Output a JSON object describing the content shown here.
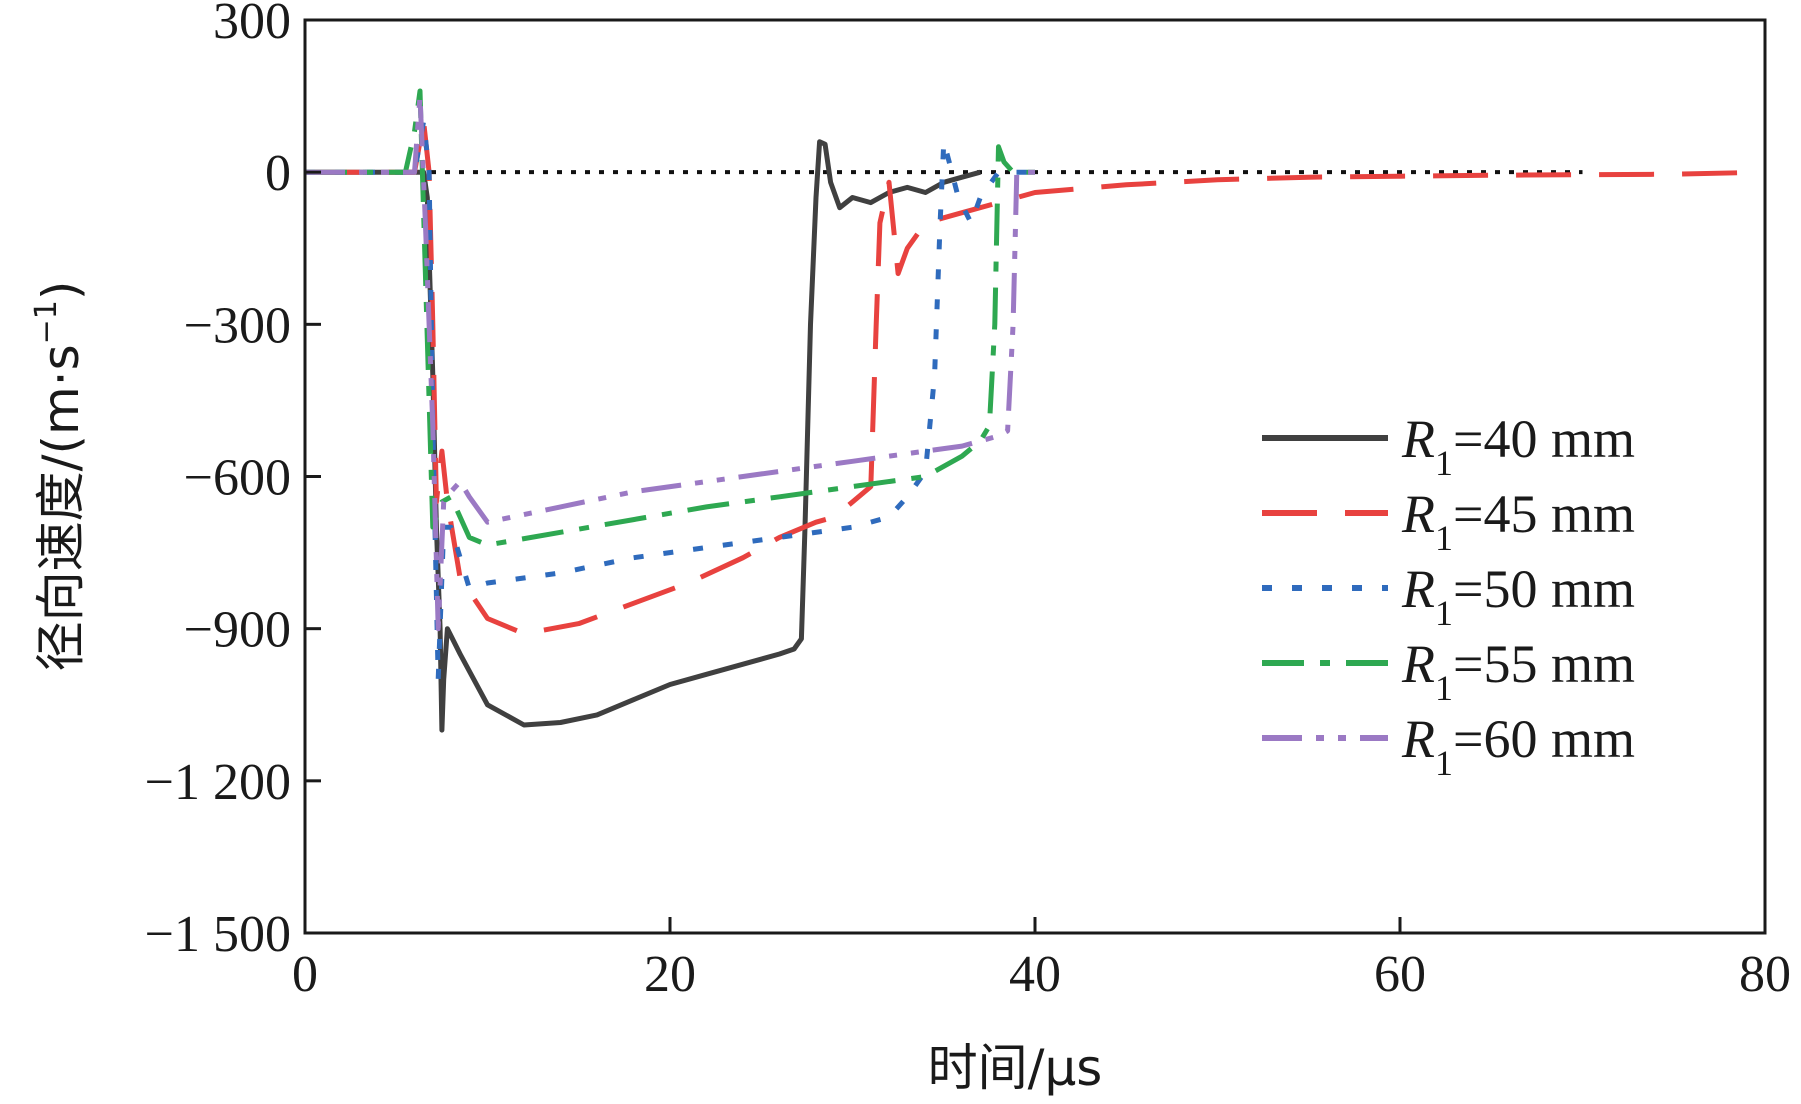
{
  "chart_data": {
    "type": "line",
    "title": "",
    "xlabel": "时间/μs",
    "ylabel": "径向速度/(m·s⁻¹)",
    "ylabel_parts": {
      "prefix": "径向速度/(m·s",
      "sup": "−1",
      "suffix": ")"
    },
    "xlim": [
      0,
      80
    ],
    "ylim": [
      -1500,
      300
    ],
    "xticks": [
      0,
      20,
      40,
      60,
      80
    ],
    "xtick_labels": [
      "0",
      "20",
      "40",
      "60",
      "80"
    ],
    "yticks": [
      300,
      0,
      -300,
      -600,
      -900,
      -1200,
      -1500
    ],
    "ytick_labels": [
      "300",
      "0",
      "−300",
      "−600",
      "−900",
      "−1 200",
      "−1 500"
    ],
    "grid": false,
    "legend_position": "center-right",
    "reference_line": {
      "y": 0,
      "x_range": [
        0,
        70
      ],
      "style": "dotted",
      "color": "#111111"
    },
    "series": [
      {
        "name": "R1=40 mm",
        "legend": {
          "symbol": "R",
          "subscript": "1",
          "text": "=40 mm"
        },
        "color": "#404040",
        "style": "solid",
        "points": [
          [
            0,
            0
          ],
          [
            6.5,
            0
          ],
          [
            6.7,
            -50
          ],
          [
            7.0,
            -400
          ],
          [
            7.2,
            -700
          ],
          [
            7.4,
            -900
          ],
          [
            7.5,
            -1100
          ],
          [
            7.6,
            -1000
          ],
          [
            7.8,
            -900
          ],
          [
            8.5,
            -950
          ],
          [
            10,
            -1050
          ],
          [
            12,
            -1090
          ],
          [
            14,
            -1085
          ],
          [
            16,
            -1070
          ],
          [
            18,
            -1040
          ],
          [
            20,
            -1010
          ],
          [
            22,
            -990
          ],
          [
            24,
            -970
          ],
          [
            26,
            -950
          ],
          [
            26.8,
            -940
          ],
          [
            27.2,
            -920
          ],
          [
            27.4,
            -700
          ],
          [
            27.7,
            -300
          ],
          [
            28.0,
            -50
          ],
          [
            28.2,
            60
          ],
          [
            28.5,
            55
          ],
          [
            28.8,
            -20
          ],
          [
            29.3,
            -70
          ],
          [
            30,
            -50
          ],
          [
            31,
            -60
          ],
          [
            32,
            -40
          ],
          [
            33,
            -30
          ],
          [
            34,
            -40
          ],
          [
            35,
            -20
          ],
          [
            36,
            -10
          ],
          [
            37,
            0
          ]
        ]
      },
      {
        "name": "R1=45 mm",
        "legend": {
          "symbol": "R",
          "subscript": "1",
          "text": "=45 mm"
        },
        "color": "#e8423f",
        "style": "dashed",
        "points": [
          [
            0,
            0
          ],
          [
            6.0,
            0
          ],
          [
            6.5,
            100
          ],
          [
            6.8,
            0
          ],
          [
            7.0,
            -300
          ],
          [
            7.2,
            -650
          ],
          [
            7.5,
            -550
          ],
          [
            7.8,
            -650
          ],
          [
            8.5,
            -800
          ],
          [
            10,
            -880
          ],
          [
            12,
            -910
          ],
          [
            15,
            -890
          ],
          [
            18,
            -850
          ],
          [
            21,
            -810
          ],
          [
            24,
            -760
          ],
          [
            26,
            -720
          ],
          [
            28,
            -690
          ],
          [
            29,
            -680
          ],
          [
            30,
            -650
          ],
          [
            31,
            -620
          ],
          [
            31.3,
            -300
          ],
          [
            31.5,
            -100
          ],
          [
            32,
            -20
          ],
          [
            32.5,
            -200
          ],
          [
            33,
            -150
          ],
          [
            34,
            -100
          ],
          [
            36,
            -80
          ],
          [
            38,
            -60
          ],
          [
            40,
            -40
          ],
          [
            45,
            -25
          ],
          [
            50,
            -15
          ],
          [
            55,
            -10
          ],
          [
            60,
            -8
          ],
          [
            65,
            -6
          ],
          [
            70,
            -5
          ],
          [
            75,
            -4
          ],
          [
            80,
            0
          ]
        ]
      },
      {
        "name": "R1=50 mm",
        "legend": {
          "symbol": "R",
          "subscript": "1",
          "text": "=50 mm"
        },
        "color": "#2f6bbd",
        "style": "dotted",
        "points": [
          [
            0,
            0
          ],
          [
            6.0,
            0
          ],
          [
            6.5,
            100
          ],
          [
            6.8,
            0
          ],
          [
            7.0,
            -500
          ],
          [
            7.3,
            -1000
          ],
          [
            7.6,
            -700
          ],
          [
            8.0,
            -700
          ],
          [
            9,
            -820
          ],
          [
            10,
            -810
          ],
          [
            14,
            -790
          ],
          [
            18,
            -760
          ],
          [
            22,
            -740
          ],
          [
            26,
            -720
          ],
          [
            30,
            -700
          ],
          [
            32,
            -680
          ],
          [
            33,
            -640
          ],
          [
            34,
            -590
          ],
          [
            34.5,
            -400
          ],
          [
            34.8,
            -100
          ],
          [
            35.0,
            60
          ],
          [
            35.3,
            20
          ],
          [
            35.8,
            -50
          ],
          [
            36.5,
            -100
          ],
          [
            37,
            -50
          ],
          [
            38,
            0
          ],
          [
            40,
            0
          ]
        ]
      },
      {
        "name": "R1=55 mm",
        "legend": {
          "symbol": "R",
          "subscript": "1",
          "text": "=55 mm"
        },
        "color": "#2ea851",
        "style": "dashdot",
        "points": [
          [
            0,
            0
          ],
          [
            5.5,
            0
          ],
          [
            6.0,
            80
          ],
          [
            6.3,
            160
          ],
          [
            6.6,
            -200
          ],
          [
            7.0,
            -700
          ],
          [
            7.5,
            -650
          ],
          [
            8.0,
            -640
          ],
          [
            9,
            -720
          ],
          [
            10,
            -735
          ],
          [
            14,
            -710
          ],
          [
            18,
            -685
          ],
          [
            22,
            -660
          ],
          [
            26,
            -640
          ],
          [
            30,
            -620
          ],
          [
            34,
            -600
          ],
          [
            36,
            -560
          ],
          [
            37,
            -530
          ],
          [
            37.5,
            -500
          ],
          [
            37.8,
            -300
          ],
          [
            38.0,
            50
          ],
          [
            38.3,
            20
          ],
          [
            38.8,
            0
          ],
          [
            40,
            0
          ]
        ]
      },
      {
        "name": "R1=60 mm",
        "legend": {
          "symbol": "R",
          "subscript": "1",
          "text": "=60 mm"
        },
        "color": "#9b79c4",
        "style": "dashdotdot",
        "points": [
          [
            0,
            0
          ],
          [
            6.0,
            0
          ],
          [
            6.3,
            150
          ],
          [
            6.6,
            -100
          ],
          [
            7.0,
            -500
          ],
          [
            7.3,
            -900
          ],
          [
            7.6,
            -650
          ],
          [
            8.0,
            -630
          ],
          [
            8.5,
            -610
          ],
          [
            9,
            -640
          ],
          [
            10,
            -690
          ],
          [
            14,
            -660
          ],
          [
            18,
            -630
          ],
          [
            22,
            -610
          ],
          [
            26,
            -590
          ],
          [
            30,
            -570
          ],
          [
            34,
            -550
          ],
          [
            36,
            -540
          ],
          [
            37,
            -530
          ],
          [
            38,
            -520
          ],
          [
            38.5,
            -510
          ],
          [
            38.8,
            -300
          ],
          [
            39.0,
            0
          ],
          [
            40,
            0
          ]
        ]
      }
    ]
  }
}
